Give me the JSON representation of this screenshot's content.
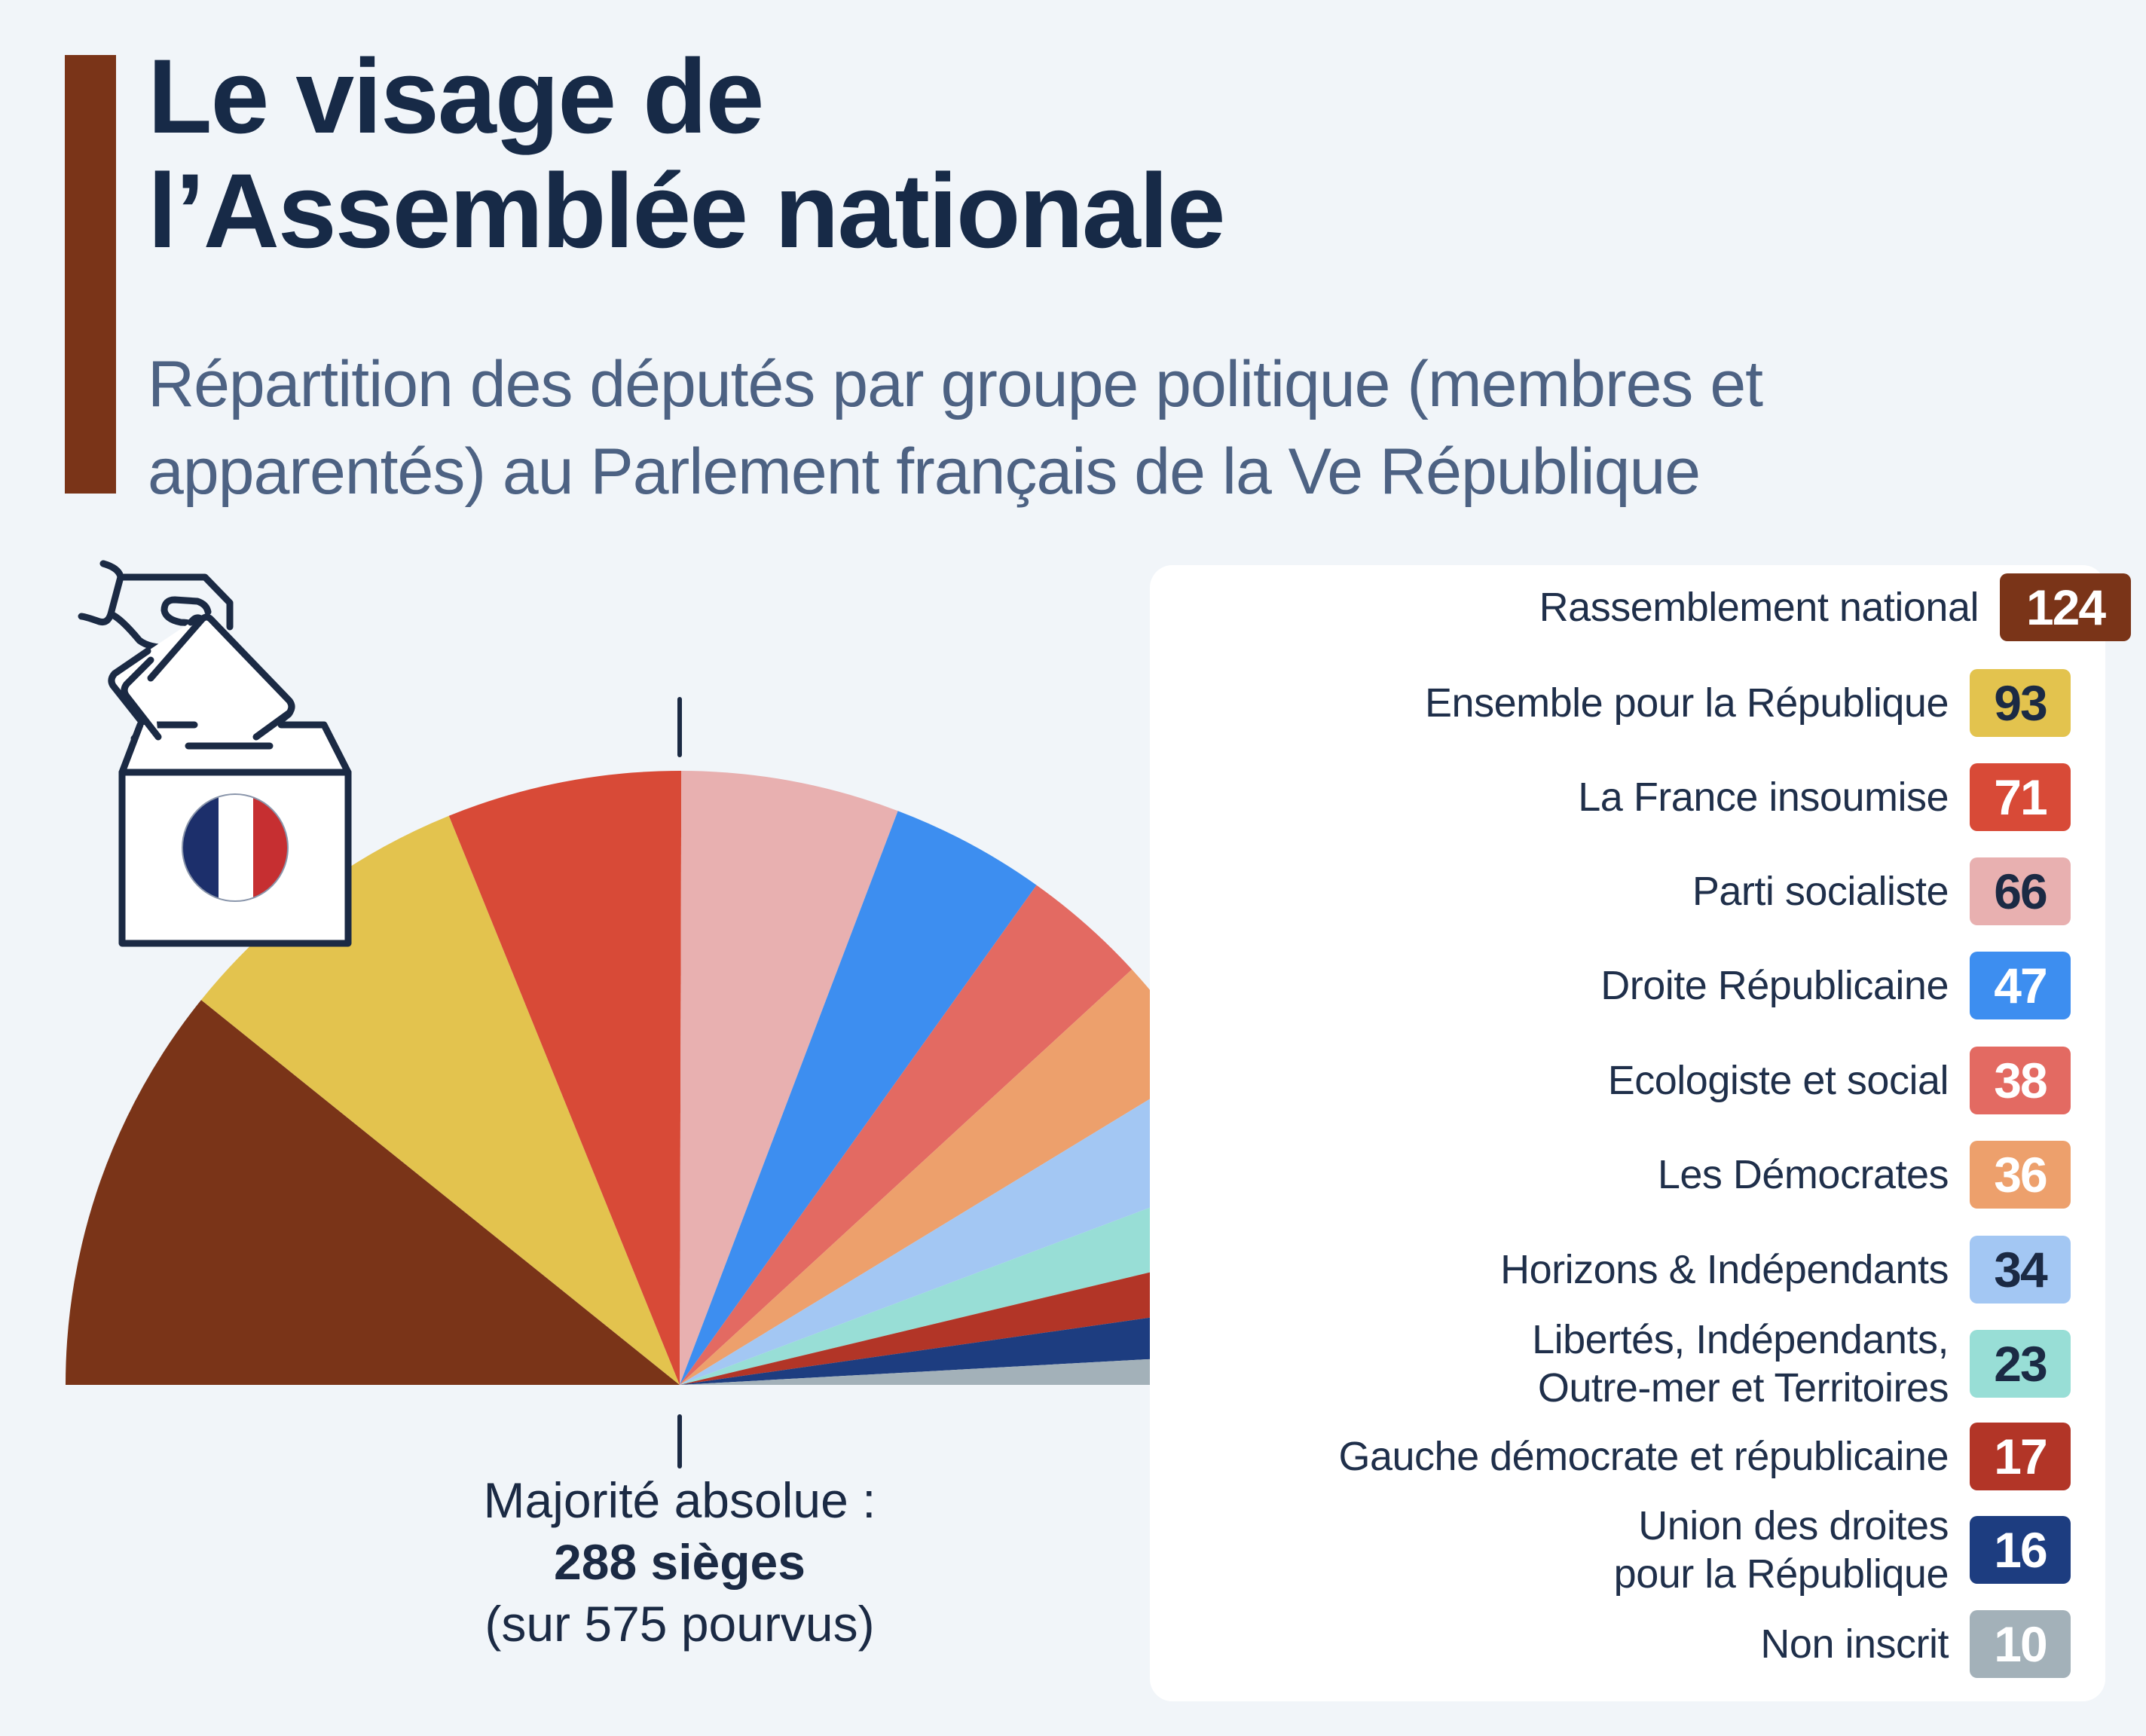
{
  "title": {
    "line1": "Le visage de",
    "line2": "l’Assemblée nationale"
  },
  "subtitle": {
    "line1": "Répartition des députés par groupe politique (membres et",
    "line2": "apparentés) au Parlement français de la Ve République"
  },
  "icon": "ballot-box-icon",
  "accent_color": "#7a3418",
  "majority": {
    "line1": "Majorité absolue :",
    "line2": "288 sièges",
    "line3": "(sur 575 pourvus)"
  },
  "chart_data": {
    "type": "pie",
    "variant": "semicircle",
    "title": "Le visage de l’Assemblée nationale",
    "total": 575,
    "majority_threshold": 288,
    "legend_position": "right",
    "series": [
      {
        "name": "Rassemblement national",
        "lines": [
          "Rassemblement national"
        ],
        "value": 124,
        "color": "#7a3418",
        "text_color": "#ffffff"
      },
      {
        "name": "Ensemble pour la République",
        "lines": [
          "Ensemble pour la République"
        ],
        "value": 93,
        "color": "#e3c34e",
        "text_color": "#1b2a44"
      },
      {
        "name": "La France insoumise",
        "lines": [
          "La France insoumise"
        ],
        "value": 71,
        "color": "#d84a37",
        "text_color": "#ffffff"
      },
      {
        "name": "Parti socialiste",
        "lines": [
          "Parti socialiste"
        ],
        "value": 66,
        "color": "#e8b0b0",
        "text_color": "#1b2a44"
      },
      {
        "name": "Droite Républicaine",
        "lines": [
          "Droite Républicaine"
        ],
        "value": 47,
        "color": "#3d8ef0",
        "text_color": "#ffffff"
      },
      {
        "name": "Ecologiste et social",
        "lines": [
          "Ecologiste et social"
        ],
        "value": 38,
        "color": "#e36a62",
        "text_color": "#ffffff"
      },
      {
        "name": "Les Démocrates",
        "lines": [
          "Les Démocrates"
        ],
        "value": 36,
        "color": "#eda06c",
        "text_color": "#ffffff"
      },
      {
        "name": "Horizons & Indépendants",
        "lines": [
          "Horizons & Indépendants"
        ],
        "value": 34,
        "color": "#a3c7f3",
        "text_color": "#1b2a44"
      },
      {
        "name": "Libertés, Indépendants, Outre-mer et Territoires",
        "lines": [
          "Libertés, Indépendants,",
          "Outre-mer et Territoires"
        ],
        "value": 23,
        "color": "#98ded6",
        "text_color": "#1b2a44"
      },
      {
        "name": "Gauche démocrate et républicaine",
        "lines": [
          "Gauche démocrate et républicaine"
        ],
        "value": 17,
        "color": "#b23527",
        "text_color": "#ffffff"
      },
      {
        "name": "Union des droites pour la République",
        "lines": [
          "Union des droites",
          "pour la République"
        ],
        "value": 16,
        "color": "#1d3d80",
        "text_color": "#ffffff"
      },
      {
        "name": "Non inscrit",
        "lines": [
          "Non inscrit"
        ],
        "value": 10,
        "color": "#a3b1b9",
        "text_color": "#ffffff"
      }
    ]
  }
}
